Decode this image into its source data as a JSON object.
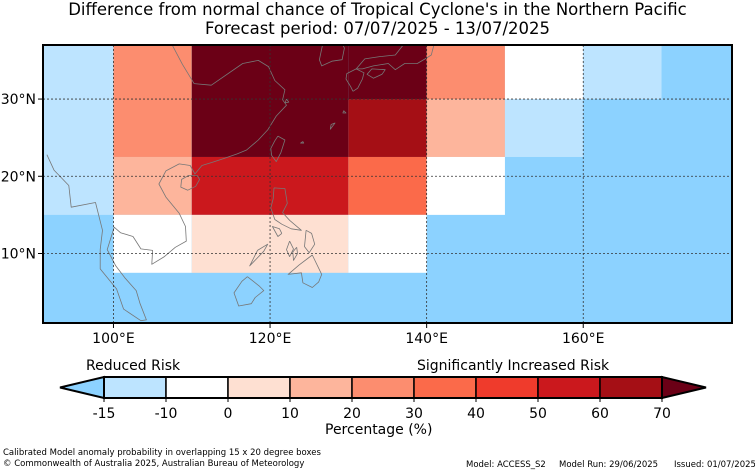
{
  "title": {
    "line1": "Difference from normal chance of Tropical Cyclone's in the Northern Pacific",
    "line2": "Forecast period: 07/07/2025 - 13/07/2025"
  },
  "map": {
    "lon_range": [
      91,
      179
    ],
    "lat_range": [
      1,
      37
    ],
    "x_ticks": [
      {
        "lon": 100,
        "label": "100°E"
      },
      {
        "lon": 120,
        "label": "120°E"
      },
      {
        "lon": 140,
        "label": "140°E"
      },
      {
        "lon": 160,
        "label": "160°E"
      }
    ],
    "y_ticks": [
      {
        "lat": 10,
        "label": "10°N"
      },
      {
        "lat": 20,
        "label": "20°N"
      },
      {
        "lat": 30,
        "label": "30°N"
      }
    ],
    "grid": "dashed",
    "ocean_color": "#8cd2ff",
    "cells": [
      {
        "lon": [
          91,
          100
        ],
        "lat": [
          15,
          37
        ],
        "color": "#bde4ff"
      },
      {
        "lon": [
          100,
          110
        ],
        "lat": [
          22.5,
          37
        ],
        "color": "#fc8d6f"
      },
      {
        "lon": [
          100,
          110
        ],
        "lat": [
          15,
          22.5
        ],
        "color": "#fdb59c"
      },
      {
        "lon": [
          100,
          110
        ],
        "lat": [
          7.5,
          15
        ],
        "color": "#ffffff"
      },
      {
        "lon": [
          110,
          130
        ],
        "lat": [
          22.5,
          37
        ],
        "color": "#6b0016"
      },
      {
        "lon": [
          130,
          140
        ],
        "lat": [
          30,
          37
        ],
        "color": "#6b0016"
      },
      {
        "lon": [
          130,
          140
        ],
        "lat": [
          22.5,
          30
        ],
        "color": "#a50f15"
      },
      {
        "lon": [
          110,
          130
        ],
        "lat": [
          15,
          22.5
        ],
        "color": "#cb181d"
      },
      {
        "lon": [
          130,
          140
        ],
        "lat": [
          15,
          22.5
        ],
        "color": "#fb6a4a"
      },
      {
        "lon": [
          110,
          130
        ],
        "lat": [
          7.5,
          15
        ],
        "color": "#fee0d2"
      },
      {
        "lon": [
          130,
          140
        ],
        "lat": [
          7.5,
          15
        ],
        "color": "#ffffff"
      },
      {
        "lon": [
          140,
          150
        ],
        "lat": [
          30,
          37
        ],
        "color": "#fc8d6f"
      },
      {
        "lon": [
          140,
          150
        ],
        "lat": [
          22.5,
          30
        ],
        "color": "#fdb59c"
      },
      {
        "lon": [
          140,
          150
        ],
        "lat": [
          15,
          22.5
        ],
        "color": "#ffffff"
      },
      {
        "lon": [
          150,
          160
        ],
        "lat": [
          30,
          37
        ],
        "color": "#ffffff"
      },
      {
        "lon": [
          150,
          160
        ],
        "lat": [
          22.5,
          30
        ],
        "color": "#bde4ff"
      },
      {
        "lon": [
          160,
          170
        ],
        "lat": [
          30,
          37
        ],
        "color": "#bde4ff"
      }
    ],
    "coast_color": "#777777",
    "coastlines": [
      [
        [
          107.5,
          37
        ],
        [
          108.8,
          34.5
        ],
        [
          110.3,
          32
        ],
        [
          112.5,
          31.8
        ],
        [
          116.5,
          34.6
        ],
        [
          118.5,
          35
        ],
        [
          119.8,
          34.2
        ],
        [
          120.6,
          32.4
        ],
        [
          121.9,
          31.2
        ],
        [
          121.6,
          29.9
        ],
        [
          122.1,
          29.2
        ],
        [
          120.8,
          27.8
        ],
        [
          119.7,
          26
        ],
        [
          118.5,
          24.7
        ],
        [
          117,
          23.4
        ],
        [
          115.8,
          22.9
        ],
        [
          114.1,
          22.3
        ],
        [
          112.6,
          21.8
        ],
        [
          111.3,
          21.4
        ],
        [
          110.4,
          20.3
        ],
        [
          109.8,
          21.4
        ],
        [
          108.4,
          21.6
        ],
        [
          106.7,
          20.7
        ],
        [
          105.8,
          19
        ],
        [
          106.7,
          17.3
        ],
        [
          108.4,
          15.2
        ],
        [
          109.2,
          13.5
        ],
        [
          109.3,
          11.6
        ],
        [
          107.9,
          10.8
        ],
        [
          106.5,
          9.6
        ],
        [
          104.9,
          8.6
        ],
        [
          105,
          10.4
        ],
        [
          103.5,
          10.6
        ],
        [
          102.5,
          12.2
        ],
        [
          100.9,
          12.7
        ],
        [
          100.1,
          13.4
        ],
        [
          99.2,
          10.5
        ],
        [
          100.3,
          8.4
        ],
        [
          101.5,
          6.8
        ],
        [
          102.9,
          5.2
        ],
        [
          103.4,
          3.5
        ],
        [
          104.2,
          1.4
        ],
        [
          103.5,
          1.3
        ],
        [
          101.3,
          2.8
        ],
        [
          100.4,
          5.4
        ],
        [
          98.3,
          8
        ],
        [
          98.3,
          10.5
        ],
        [
          98.6,
          13
        ],
        [
          97.7,
          16.6
        ],
        [
          94.6,
          16
        ],
        [
          94.3,
          18.8
        ],
        [
          92.4,
          20.8
        ],
        [
          91.5,
          22.8
        ]
      ],
      [
        [
          110.7,
          20.1
        ],
        [
          111,
          19.6
        ],
        [
          110.5,
          18.7
        ],
        [
          109.5,
          18.2
        ],
        [
          108.6,
          18.6
        ],
        [
          108.7,
          19.6
        ],
        [
          109.6,
          20.1
        ],
        [
          110.7,
          20.1
        ]
      ],
      [
        [
          121,
          25.2
        ],
        [
          121.9,
          24.7
        ],
        [
          121.4,
          23.1
        ],
        [
          120.8,
          21.9
        ],
        [
          120.2,
          22.7
        ],
        [
          120.1,
          23.6
        ],
        [
          120.6,
          24.6
        ],
        [
          121,
          25.2
        ]
      ],
      [
        [
          120.5,
          18.5
        ],
        [
          121.9,
          18.4
        ],
        [
          122.2,
          16.5
        ],
        [
          121.6,
          15.3
        ],
        [
          122.5,
          14.3
        ],
        [
          124,
          13
        ],
        [
          122.7,
          13.2
        ],
        [
          121.5,
          13.8
        ],
        [
          120.6,
          14.4
        ],
        [
          120.1,
          15.9
        ],
        [
          120.4,
          17.1
        ],
        [
          120.5,
          18.5
        ]
      ],
      [
        [
          124.6,
          13
        ],
        [
          125.3,
          12.6
        ],
        [
          125.7,
          11.2
        ],
        [
          125,
          10.1
        ],
        [
          124.4,
          10.9
        ],
        [
          124.6,
          13
        ]
      ],
      [
        [
          122.5,
          11.6
        ],
        [
          123,
          10.6
        ],
        [
          122.5,
          9.6
        ],
        [
          122.1,
          10.5
        ],
        [
          122.5,
          11.6
        ]
      ],
      [
        [
          123.4,
          10.8
        ],
        [
          123.5,
          10
        ],
        [
          123,
          9.1
        ],
        [
          122.9,
          10.2
        ],
        [
          123.4,
          10.8
        ]
      ],
      [
        [
          121.5,
          12.6
        ],
        [
          121.2,
          13.2
        ],
        [
          120.3,
          13.5
        ],
        [
          121,
          12.2
        ],
        [
          121.5,
          12.6
        ]
      ],
      [
        [
          118.4,
          10.4
        ],
        [
          119.7,
          11.2
        ],
        [
          119.2,
          10.3
        ],
        [
          117.4,
          8.4
        ],
        [
          118.4,
          10.4
        ]
      ],
      [
        [
          125.4,
          9.8
        ],
        [
          126.6,
          7.3
        ],
        [
          126.2,
          6.3
        ],
        [
          125.4,
          5.6
        ],
        [
          124.2,
          6.2
        ],
        [
          124,
          7.5
        ],
        [
          122.3,
          7.3
        ],
        [
          123.7,
          8.5
        ],
        [
          125.4,
          9.8
        ]
      ],
      [
        [
          117.1,
          7
        ],
        [
          118.6,
          5.8
        ],
        [
          119.2,
          5.2
        ],
        [
          118.1,
          4.3
        ],
        [
          117.6,
          3.5
        ],
        [
          116,
          3.2
        ],
        [
          115.4,
          4.9
        ],
        [
          116.4,
          6.4
        ],
        [
          117.1,
          7
        ]
      ],
      [
        [
          141.3,
          41.4
        ],
        [
          140.9,
          38.3
        ],
        [
          140.9,
          36.9
        ],
        [
          140.6,
          35.7
        ],
        [
          139.8,
          35.2
        ],
        [
          138.8,
          34.6
        ],
        [
          137.2,
          34.6
        ],
        [
          136,
          33.8
        ],
        [
          135.1,
          34.6
        ],
        [
          133.2,
          34.3
        ],
        [
          131.8,
          33.9
        ],
        [
          131,
          33.9
        ],
        [
          132.1,
          35.2
        ],
        [
          134,
          35.5
        ],
        [
          136,
          35.7
        ],
        [
          137,
          37
        ],
        [
          138.5,
          37.8
        ],
        [
          139.7,
          39.9
        ],
        [
          141.3,
          41.4
        ]
      ],
      [
        [
          130.6,
          31
        ],
        [
          131.2,
          31.4
        ],
        [
          131.8,
          32.6
        ],
        [
          132,
          33.4
        ],
        [
          131,
          33.9
        ],
        [
          129.8,
          33.3
        ],
        [
          129.7,
          32.6
        ],
        [
          130.3,
          31.6
        ],
        [
          130.6,
          31
        ]
      ],
      [
        [
          133,
          33.9
        ],
        [
          134.7,
          33.8
        ],
        [
          134.3,
          33.2
        ],
        [
          133.2,
          32.7
        ],
        [
          132.4,
          33.2
        ],
        [
          133,
          33.9
        ]
      ],
      [
        [
          126.7,
          37
        ],
        [
          126.3,
          35.1
        ],
        [
          126.6,
          34.3
        ],
        [
          127.9,
          34.9
        ],
        [
          129.2,
          35.1
        ],
        [
          129.5,
          36.6
        ],
        [
          129.3,
          37
        ]
      ],
      [
        [
          127.8,
          26.7
        ],
        [
          128.3,
          26.9
        ],
        [
          127.7,
          26.1
        ],
        [
          127.8,
          26.7
        ]
      ],
      [
        [
          122.1,
          30
        ],
        [
          122.4,
          29.6
        ],
        [
          121.9,
          29.5
        ],
        [
          122.1,
          30
        ]
      ],
      [
        [
          129.4,
          28.5
        ],
        [
          129.7,
          28.2
        ],
        [
          129.3,
          28.2
        ],
        [
          129.4,
          28.5
        ]
      ],
      [
        [
          124.2,
          24.5
        ],
        [
          124.3,
          24.3
        ],
        [
          123.9,
          24.3
        ],
        [
          124.2,
          24.5
        ]
      ]
    ]
  },
  "colorbar": {
    "low_label": "Reduced Risk",
    "high_label": "Significantly Increased Risk",
    "xlabel": "Percentage (%)",
    "ticks": [
      "-15",
      "-10",
      "0",
      "10",
      "20",
      "30",
      "40",
      "50",
      "60",
      "70"
    ],
    "under_color": "#8cd2ff",
    "over_color": "#6b0016",
    "colors": [
      "#bde4ff",
      "#ffffff",
      "#fee0d2",
      "#fdb59c",
      "#fc8d6f",
      "#fb6a4a",
      "#ef3b2c",
      "#cb181d",
      "#a50f15"
    ]
  },
  "footer": {
    "description": "Calibrated Model anomaly probability in overlapping 15 x 20 degree boxes",
    "copyright": "© Commonwealth of Australia 2025, Australian Bureau of Meteorology",
    "model": "Model: ACCESS_S2",
    "model_run": "Model Run: 29/06/2025",
    "issued": "Issued: 01/07/2025"
  }
}
